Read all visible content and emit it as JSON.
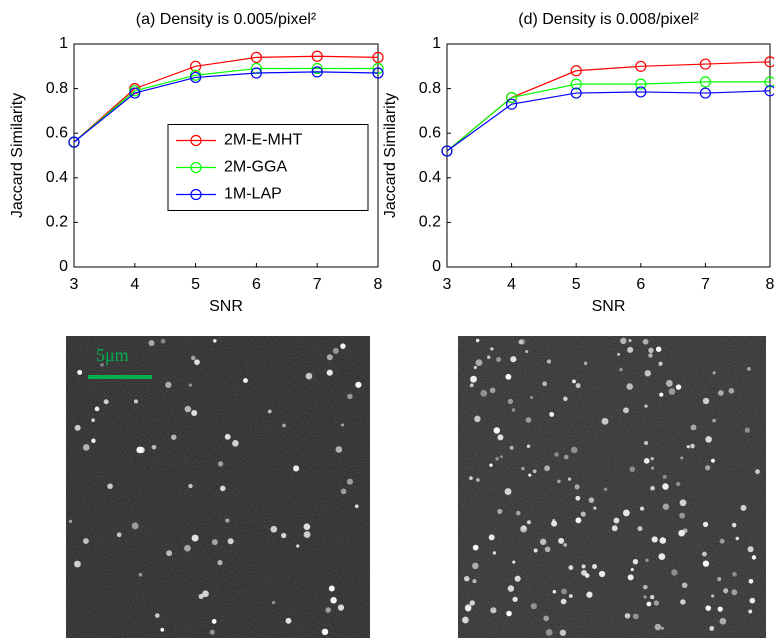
{
  "scale_bar_label": "5μm",
  "chart_data": [
    {
      "type": "line",
      "title": "(a) Density is 0.005/pixel²",
      "xlabel": "SNR",
      "ylabel": "Jaccard Similarity",
      "x": [
        3,
        4,
        5,
        6,
        7,
        8
      ],
      "xlim": [
        3,
        8
      ],
      "xticks": [
        3,
        4,
        5,
        6,
        7,
        8
      ],
      "ylim": [
        0,
        1
      ],
      "yticks": [
        0,
        0.2,
        0.4,
        0.6,
        0.8,
        1
      ],
      "legend": "center right",
      "series": [
        {
          "name": "2M-E-MHT",
          "color": "#ff0000",
          "values": [
            0.56,
            0.8,
            0.9,
            0.94,
            0.945,
            0.94
          ]
        },
        {
          "name": "2M-GGA",
          "color": "#00ff00",
          "values": [
            0.56,
            0.79,
            0.86,
            0.89,
            0.89,
            0.89
          ]
        },
        {
          "name": "1M-LAP",
          "color": "#0000ff",
          "values": [
            0.56,
            0.78,
            0.85,
            0.87,
            0.875,
            0.87
          ]
        }
      ]
    },
    {
      "type": "line",
      "title": "(d) Density is 0.008/pixel²",
      "xlabel": "SNR",
      "ylabel": "Jaccard Similarity",
      "x": [
        3,
        4,
        5,
        6,
        7,
        8
      ],
      "xlim": [
        3,
        8
      ],
      "xticks": [
        3,
        4,
        5,
        6,
        7,
        8
      ],
      "ylim": [
        0,
        1
      ],
      "yticks": [
        0,
        0.2,
        0.4,
        0.6,
        0.8,
        1
      ],
      "legend": false,
      "series": [
        {
          "color": "#ff0000",
          "values": [
            0.52,
            0.76,
            0.88,
            0.9,
            0.91,
            0.92
          ]
        },
        {
          "color": "#00ff00",
          "values": [
            0.52,
            0.76,
            0.82,
            0.82,
            0.83,
            0.83
          ]
        },
        {
          "color": "#0000ff",
          "values": [
            0.52,
            0.73,
            0.78,
            0.785,
            0.78,
            0.79
          ]
        }
      ]
    }
  ]
}
